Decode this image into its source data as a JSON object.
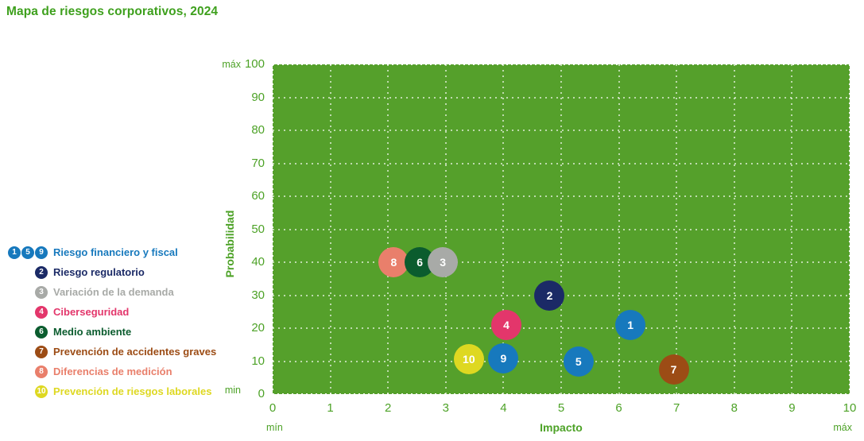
{
  "title": "Mapa de riesgos corporativos, 2024",
  "chart_data": {
    "type": "scatter",
    "title": "Mapa de riesgos corporativos, 2024",
    "xlabel": "Impacto",
    "ylabel": "Probabilidad",
    "xlim": [
      0,
      10
    ],
    "ylim": [
      0,
      100
    ],
    "x_ticks": [
      0,
      1,
      2,
      3,
      4,
      5,
      6,
      7,
      8,
      9,
      10
    ],
    "y_ticks": [
      0,
      10,
      20,
      30,
      40,
      50,
      60,
      70,
      80,
      90,
      100
    ],
    "grid": true,
    "legend_position": "left",
    "plot_background": "#55a02b",
    "axis_text_color": "#4da227",
    "annotations": {
      "y_max": "máx",
      "y_min": "min",
      "x_min": "mín",
      "x_max": "máx"
    },
    "points": [
      {
        "id": "1",
        "label": "Riesgo financiero y fiscal",
        "x": 6.2,
        "y": 21,
        "color": "#1779bd",
        "z": 0
      },
      {
        "id": "2",
        "label": "Riesgo regulatorio",
        "x": 4.8,
        "y": 30,
        "color": "#1b2a66",
        "z": 0
      },
      {
        "id": "3",
        "label": "Variación de la demanda",
        "x": 2.95,
        "y": 40,
        "color": "#a8aaa7",
        "z": 3
      },
      {
        "id": "4",
        "label": "Ciberseguridad",
        "x": 4.05,
        "y": 21,
        "color": "#e3366b",
        "z": 0
      },
      {
        "id": "5",
        "label": "Riesgo financiero y fiscal",
        "x": 5.3,
        "y": 10,
        "color": "#1779bd",
        "z": 0
      },
      {
        "id": "6",
        "label": "Medio ambiente",
        "x": 2.55,
        "y": 40,
        "color": "#0b5c2e",
        "z": 2
      },
      {
        "id": "7",
        "label": "Prevención de accidentes graves",
        "x": 6.95,
        "y": 7.5,
        "color": "#9c4c15",
        "z": 0
      },
      {
        "id": "8",
        "label": "Diferencias de medición",
        "x": 2.1,
        "y": 40,
        "color": "#e97f6b",
        "z": 1
      },
      {
        "id": "9",
        "label": "Riesgo financiero y fiscal",
        "x": 4.0,
        "y": 10.8,
        "color": "#1779bd",
        "z": 0
      },
      {
        "id": "10",
        "label": "Prevención de riesgos laborales",
        "x": 3.4,
        "y": 10.5,
        "color": "#ded821",
        "z": 0
      }
    ]
  },
  "legend": {
    "items": [
      {
        "badges": [
          "1",
          "5",
          "9"
        ],
        "label": "Riesgo financiero y fiscal",
        "color": "#1779bd"
      },
      {
        "badges": [
          "2"
        ],
        "label": "Riesgo regulatorio",
        "color": "#1b2a66"
      },
      {
        "badges": [
          "3"
        ],
        "label": "Variación de la demanda",
        "color": "#a8aaa7"
      },
      {
        "badges": [
          "4"
        ],
        "label": "Ciberseguridad",
        "color": "#e3366b"
      },
      {
        "badges": [
          "6"
        ],
        "label": "Medio ambiente",
        "color": "#0b5c2e"
      },
      {
        "badges": [
          "7"
        ],
        "label": "Prevención de accidentes graves",
        "color": "#9c4c15"
      },
      {
        "badges": [
          "8"
        ],
        "label": "Diferencias de medición",
        "color": "#e97f6b"
      },
      {
        "badges": [
          "10"
        ],
        "label": "Prevención de riesgos laborales",
        "color": "#ded821"
      }
    ]
  }
}
